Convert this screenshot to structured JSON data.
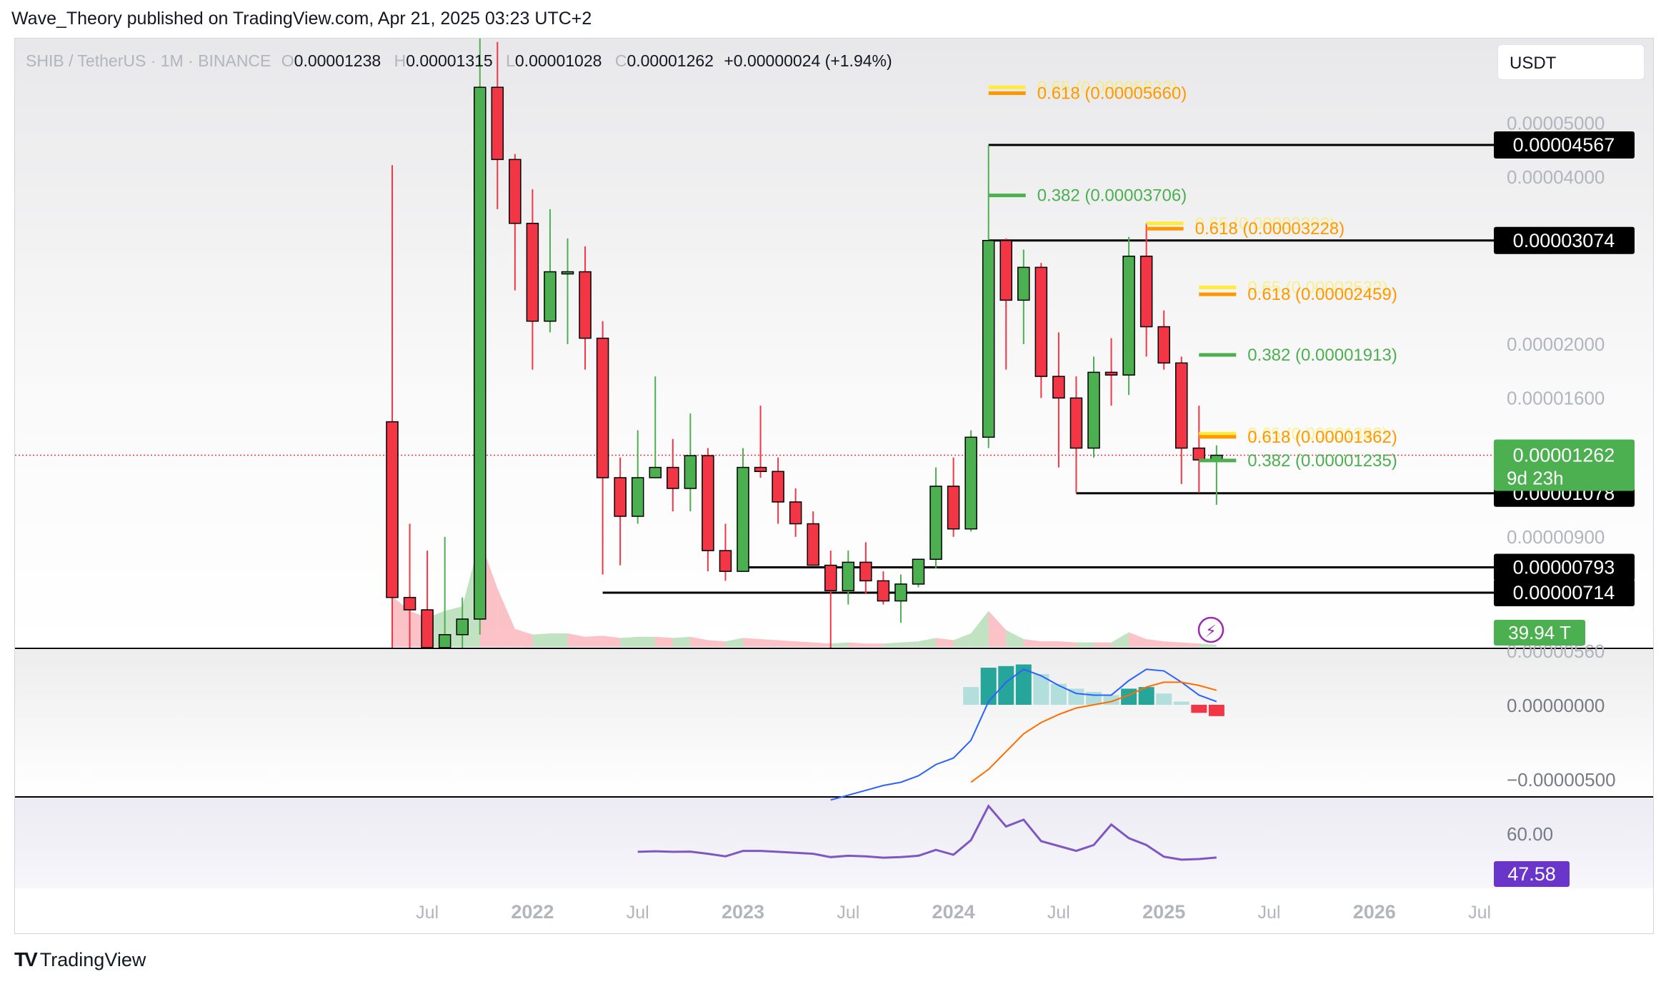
{
  "header": {
    "author_line": "Wave_Theory published on TradingView.com, Apr 21, 2025 03:23 UTC+2"
  },
  "legend": {
    "symbol": "SHIB / TetherUS · 1M · BINANCE",
    "o_label": "O",
    "o": "0.00001238",
    "h_label": "H",
    "h": "0.00001315",
    "l_label": "L",
    "l": "0.00001028",
    "c_label": "C",
    "c": "0.00001262",
    "change": "+0.00000024 (+1.94%)"
  },
  "currency": "USDT",
  "branding": {
    "name": "TradingView"
  },
  "colors": {
    "up": "#4caf50",
    "down": "#f23645",
    "fib_green": "#4caf50",
    "fib_orange": "#ff9800",
    "fib_yellow": "#ffeb3b",
    "macd": "#2962ff",
    "signal": "#ff6d00",
    "rsi": "#7e57c2"
  },
  "chart_data": [
    {
      "type": "candlestick",
      "title": "SHIB / TetherUS · 1M · BINANCE",
      "scale": "log",
      "ylim": [
        5.2e-06,
        6.8e-05
      ],
      "x_ticks": [
        "Jul",
        "2022",
        "Jul",
        "2023",
        "Jul",
        "2024",
        "Jul",
        "2025",
        "Jul",
        "2026",
        "Jul"
      ],
      "y_ticks": [
        "0.00005000",
        "0.00004000",
        "0.00002000",
        "0.00001600",
        "0.00000900",
        "0.00000560"
      ],
      "candles": [
        {
          "date": "2021-05",
          "o": 1.45e-05,
          "h": 4.2e-05,
          "l": 5.5e-06,
          "c": 7e-06
        },
        {
          "date": "2021-06",
          "o": 7e-06,
          "h": 9.5e-06,
          "l": 5e-06,
          "c": 6.65e-06
        },
        {
          "date": "2021-07",
          "o": 6.65e-06,
          "h": 8.5e-06,
          "l": 5.2e-06,
          "c": 5.6e-06
        },
        {
          "date": "2021-08",
          "o": 5.6e-06,
          "h": 9e-06,
          "l": 5.6e-06,
          "c": 6e-06
        },
        {
          "date": "2021-09",
          "o": 6e-06,
          "h": 7e-06,
          "l": 5.4e-06,
          "c": 6.4e-06
        },
        {
          "date": "2021-10",
          "o": 6.4e-06,
          "h": 8.88e-05,
          "l": 6e-06,
          "c": 5.8e-05
        },
        {
          "date": "2021-11",
          "o": 5.8e-05,
          "h": 7e-05,
          "l": 3.5e-05,
          "c": 4.3e-05
        },
        {
          "date": "2021-12",
          "o": 4.3e-05,
          "h": 4.4e-05,
          "l": 2.5e-05,
          "c": 3.3e-05
        },
        {
          "date": "2022-01",
          "o": 3.3e-05,
          "h": 3.8e-05,
          "l": 1.8e-05,
          "c": 2.2e-05
        },
        {
          "date": "2022-02",
          "o": 2.2e-05,
          "h": 3.5e-05,
          "l": 2.1e-05,
          "c": 2.7e-05
        },
        {
          "date": "2022-03",
          "o": 2.7e-05,
          "h": 3.1e-05,
          "l": 2e-05,
          "c": 2.7e-05
        },
        {
          "date": "2022-04",
          "o": 2.7e-05,
          "h": 3e-05,
          "l": 1.8e-05,
          "c": 2.05e-05
        },
        {
          "date": "2022-05",
          "o": 2.05e-05,
          "h": 2.2e-05,
          "l": 7.7e-06,
          "c": 1.15e-05
        },
        {
          "date": "2022-06",
          "o": 1.15e-05,
          "h": 1.25e-05,
          "l": 8e-06,
          "c": 9.8e-06
        },
        {
          "date": "2022-07",
          "o": 9.8e-06,
          "h": 1.4e-05,
          "l": 9.5e-06,
          "c": 1.15e-05
        },
        {
          "date": "2022-08",
          "o": 1.15e-05,
          "h": 1.75e-05,
          "l": 1.2e-05,
          "c": 1.2e-05
        },
        {
          "date": "2022-09",
          "o": 1.2e-05,
          "h": 1.35e-05,
          "l": 1e-05,
          "c": 1.1e-05
        },
        {
          "date": "2022-10",
          "o": 1.1e-05,
          "h": 1.5e-05,
          "l": 1e-05,
          "c": 1.26e-05
        },
        {
          "date": "2022-11",
          "o": 1.26e-05,
          "h": 1.3e-05,
          "l": 7.8e-06,
          "c": 8.5e-06
        },
        {
          "date": "2022-12",
          "o": 8.5e-06,
          "h": 9.5e-06,
          "l": 7.5e-06,
          "c": 7.8e-06
        },
        {
          "date": "2023-01",
          "o": 7.8e-06,
          "h": 1.3e-05,
          "l": 7.8e-06,
          "c": 1.2e-05
        },
        {
          "date": "2023-02",
          "o": 1.2e-05,
          "h": 1.55e-05,
          "l": 1.15e-05,
          "c": 1.18e-05
        },
        {
          "date": "2023-03",
          "o": 1.18e-05,
          "h": 1.25e-05,
          "l": 9.5e-06,
          "c": 1.04e-05
        },
        {
          "date": "2023-04",
          "o": 1.04e-05,
          "h": 1.1e-05,
          "l": 9e-06,
          "c": 9.5e-06
        },
        {
          "date": "2023-05",
          "o": 9.5e-06,
          "h": 1e-05,
          "l": 8e-06,
          "c": 8e-06
        },
        {
          "date": "2023-06",
          "o": 8e-06,
          "h": 8.5e-06,
          "l": 5.4e-06,
          "c": 7.2e-06
        },
        {
          "date": "2023-07",
          "o": 7.2e-06,
          "h": 8.5e-06,
          "l": 6.8e-06,
          "c": 8.1e-06
        },
        {
          "date": "2023-08",
          "o": 8.1e-06,
          "h": 8.8e-06,
          "l": 7.1e-06,
          "c": 7.5e-06
        },
        {
          "date": "2023-09",
          "o": 7.5e-06,
          "h": 7.8e-06,
          "l": 6.8e-06,
          "c": 6.9e-06
        },
        {
          "date": "2023-10",
          "o": 6.9e-06,
          "h": 7.7e-06,
          "l": 6.3e-06,
          "c": 7.4e-06
        },
        {
          "date": "2023-11",
          "o": 7.4e-06,
          "h": 8.2e-06,
          "l": 7.3e-06,
          "c": 8.2e-06
        },
        {
          "date": "2023-12",
          "o": 8.2e-06,
          "h": 1.2e-05,
          "l": 7.9e-06,
          "c": 1.11e-05
        },
        {
          "date": "2024-01",
          "o": 1.11e-05,
          "h": 1.25e-05,
          "l": 9e-06,
          "c": 9.3e-06
        },
        {
          "date": "2024-02",
          "o": 9.3e-06,
          "h": 1.4e-05,
          "l": 9.2e-06,
          "c": 1.36e-05
        },
        {
          "date": "2024-03",
          "o": 1.36e-05,
          "h": 4.56e-05,
          "l": 1.3e-05,
          "c": 3.074e-05
        },
        {
          "date": "2024-04",
          "o": 3.074e-05,
          "h": 3.1e-05,
          "l": 1.8e-05,
          "c": 2.4e-05
        },
        {
          "date": "2024-05",
          "o": 2.4e-05,
          "h": 2.96e-05,
          "l": 2e-05,
          "c": 2.75e-05
        },
        {
          "date": "2024-06",
          "o": 2.75e-05,
          "h": 2.8e-05,
          "l": 1.6e-05,
          "c": 1.75e-05
        },
        {
          "date": "2024-07",
          "o": 1.75e-05,
          "h": 2.1e-05,
          "l": 1.2e-05,
          "c": 1.6e-05
        },
        {
          "date": "2024-08",
          "o": 1.6e-05,
          "h": 1.75e-05,
          "l": 1.08e-05,
          "c": 1.3e-05
        },
        {
          "date": "2024-09",
          "o": 1.3e-05,
          "h": 1.9e-05,
          "l": 1.25e-05,
          "c": 1.78e-05
        },
        {
          "date": "2024-10",
          "o": 1.78e-05,
          "h": 2.05e-05,
          "l": 1.55e-05,
          "c": 1.76e-05
        },
        {
          "date": "2024-11",
          "o": 1.76e-05,
          "h": 3.12e-05,
          "l": 1.62e-05,
          "c": 2.88e-05
        },
        {
          "date": "2024-12",
          "o": 2.88e-05,
          "h": 3.3e-05,
          "l": 1.9e-05,
          "c": 2.15e-05
        },
        {
          "date": "2025-01",
          "o": 2.15e-05,
          "h": 2.3e-05,
          "l": 1.8e-05,
          "c": 1.85e-05
        },
        {
          "date": "2025-02",
          "o": 1.85e-05,
          "h": 1.9e-05,
          "l": 1.12e-05,
          "c": 1.3e-05
        },
        {
          "date": "2025-03",
          "o": 1.3e-05,
          "h": 1.55e-05,
          "l": 1.08e-05,
          "c": 1.238e-05
        },
        {
          "date": "2025-04",
          "o": 1.238e-05,
          "h": 1.315e-05,
          "l": 1.028e-05,
          "c": 1.262e-05
        }
      ],
      "horizontal_levels": [
        {
          "value": 4.567e-05,
          "label": "0.00004567",
          "from": "2024-03"
        },
        {
          "value": 3.074e-05,
          "label": "0.00003074",
          "from": "2024-03"
        },
        {
          "value": 1.078e-05,
          "label": "0.00001078",
          "from": "2024-08"
        },
        {
          "value": 7.93e-06,
          "label": "0.00000793",
          "from": "2023-01"
        },
        {
          "value": 7.14e-06,
          "label": "0.00000714",
          "from": "2022-05"
        }
      ],
      "fib_levels": [
        {
          "ratio": "0.65",
          "value": 5.8e-05,
          "text": "0.65 (0.0000582?)",
          "color": "yellow",
          "at": "2024-03"
        },
        {
          "ratio": "0.618",
          "value": 5.66e-05,
          "text": "0.618 (0.00005660)",
          "color": "orange",
          "at": "2024-03"
        },
        {
          "ratio": "0.382",
          "value": 3.706e-05,
          "text": "0.382 (0.00003706)",
          "color": "green",
          "at": "2024-03"
        },
        {
          "ratio": "0.65",
          "value": 3.3e-05,
          "text": "0.65 (0.0000330?)",
          "color": "yellow",
          "at": "2024-12"
        },
        {
          "ratio": "0.618",
          "value": 3.228e-05,
          "text": "0.618 (0.00003228)",
          "color": "orange",
          "at": "2024-12"
        },
        {
          "ratio": "0.65",
          "value": 2.53e-05,
          "text": "0.65 (0.0000253?)",
          "color": "yellow",
          "at": "2025-03"
        },
        {
          "ratio": "0.618",
          "value": 2.459e-05,
          "text": "0.618 (0.00002459)",
          "color": "orange",
          "at": "2025-03"
        },
        {
          "ratio": "0.382",
          "value": 1.913e-05,
          "text": "0.382 (0.00001913)",
          "color": "green",
          "at": "2025-03"
        },
        {
          "ratio": "0.65",
          "value": 1.38e-05,
          "text": "0.65 (0.0000138?)",
          "color": "yellow",
          "at": "2025-03"
        },
        {
          "ratio": "0.618",
          "value": 1.362e-05,
          "text": "0.618 (0.00001362)",
          "color": "orange",
          "at": "2025-03"
        },
        {
          "ratio": "0.382",
          "value": 1.235e-05,
          "text": "0.382 (0.00001235)",
          "color": "green",
          "at": "2025-03"
        }
      ],
      "last_price": {
        "value": "0.00001262",
        "countdown": "9d 23h"
      },
      "volume": {
        "last_label": "39.94 T",
        "values": [
          4.5,
          3.2,
          2.6,
          3.2,
          3.6,
          9.5,
          5.2,
          1.6,
          1.1,
          1.2,
          1.2,
          0.9,
          1.0,
          0.8,
          0.9,
          0.9,
          0.8,
          0.9,
          0.6,
          0.5,
          0.8,
          0.7,
          0.6,
          0.5,
          0.4,
          0.3,
          0.4,
          0.3,
          0.3,
          0.4,
          0.5,
          0.8,
          0.6,
          1.2,
          3.2,
          1.5,
          0.7,
          0.5,
          0.5,
          0.4,
          0.4,
          0.4,
          1.3,
          0.7,
          0.5,
          0.4,
          0.3,
          0.2
        ]
      }
    },
    {
      "type": "bar",
      "title": "MACD",
      "y_ticks": [
        "0.00000000",
        "−0.00000500"
      ],
      "months": [
        "2023-06",
        "2023-07",
        "2023-08",
        "2023-09",
        "2023-10",
        "2023-11",
        "2023-12",
        "2024-01",
        "2024-02",
        "2024-03",
        "2024-04",
        "2024-05",
        "2024-06",
        "2024-07",
        "2024-08",
        "2024-09",
        "2024-10",
        "2024-11",
        "2024-12",
        "2025-01",
        "2025-02",
        "2025-03",
        "2025-04"
      ],
      "macd": [
        -5.9e-06,
        -5.6e-06,
        -5.3e-06,
        -5e-06,
        -4.8e-06,
        -4.4e-06,
        -3.7e-06,
        -3.3e-06,
        -2.2e-06,
        2e-07,
        1.4e-06,
        2.2e-06,
        1.8e-06,
        1.2e-06,
        7e-07,
        6e-07,
        6e-07,
        1.5e-06,
        2.2e-06,
        2.1e-06,
        1.4e-06,
        6e-07,
        2e-07
      ],
      "signal": [
        null,
        null,
        null,
        null,
        null,
        null,
        null,
        null,
        -4.8e-06,
        -4e-06,
        -2.9e-06,
        -1.8e-06,
        -1.1e-06,
        -6e-07,
        -2e-07,
        0.0,
        2e-07,
        6e-07,
        1.1e-06,
        1.4e-06,
        1.4e-06,
        1.2e-06,
        9e-07
      ],
      "histogram": [
        null,
        null,
        null,
        null,
        null,
        null,
        null,
        null,
        1.1e-06,
        2.3e-06,
        2.4e-06,
        2.5e-06,
        1.9e-06,
        1.3e-06,
        1e-06,
        8e-07,
        6e-07,
        1e-06,
        1.1e-06,
        7e-07,
        2e-07,
        -5e-07,
        -7e-07
      ]
    },
    {
      "type": "line",
      "title": "RSI",
      "y_ticks": [
        "60.00"
      ],
      "last_label": "47.58",
      "months": [
        "2022-07",
        "2022-08",
        "2022-09",
        "2022-10",
        "2022-11",
        "2022-12",
        "2023-01",
        "2023-02",
        "2023-03",
        "2023-04",
        "2023-05",
        "2023-06",
        "2023-07",
        "2023-08",
        "2023-09",
        "2023-10",
        "2023-11",
        "2023-12",
        "2024-01",
        "2024-02",
        "2024-03",
        "2024-04",
        "2024-05",
        "2024-06",
        "2024-07",
        "2024-08",
        "2024-09",
        "2024-10",
        "2024-11",
        "2024-12",
        "2025-01",
        "2025-02",
        "2025-03",
        "2025-04"
      ],
      "values": [
        50.5,
        50.8,
        50.5,
        50.6,
        49.5,
        48.2,
        51.0,
        51.0,
        50.5,
        50.0,
        49.5,
        47.8,
        48.5,
        48.2,
        47.5,
        47.8,
        48.5,
        51.5,
        49.0,
        56.5,
        74.0,
        63.5,
        67.0,
        56.0,
        53.5,
        51.0,
        54.0,
        64.5,
        57.5,
        54.0,
        48.0,
        46.5,
        46.8,
        47.58
      ]
    }
  ]
}
